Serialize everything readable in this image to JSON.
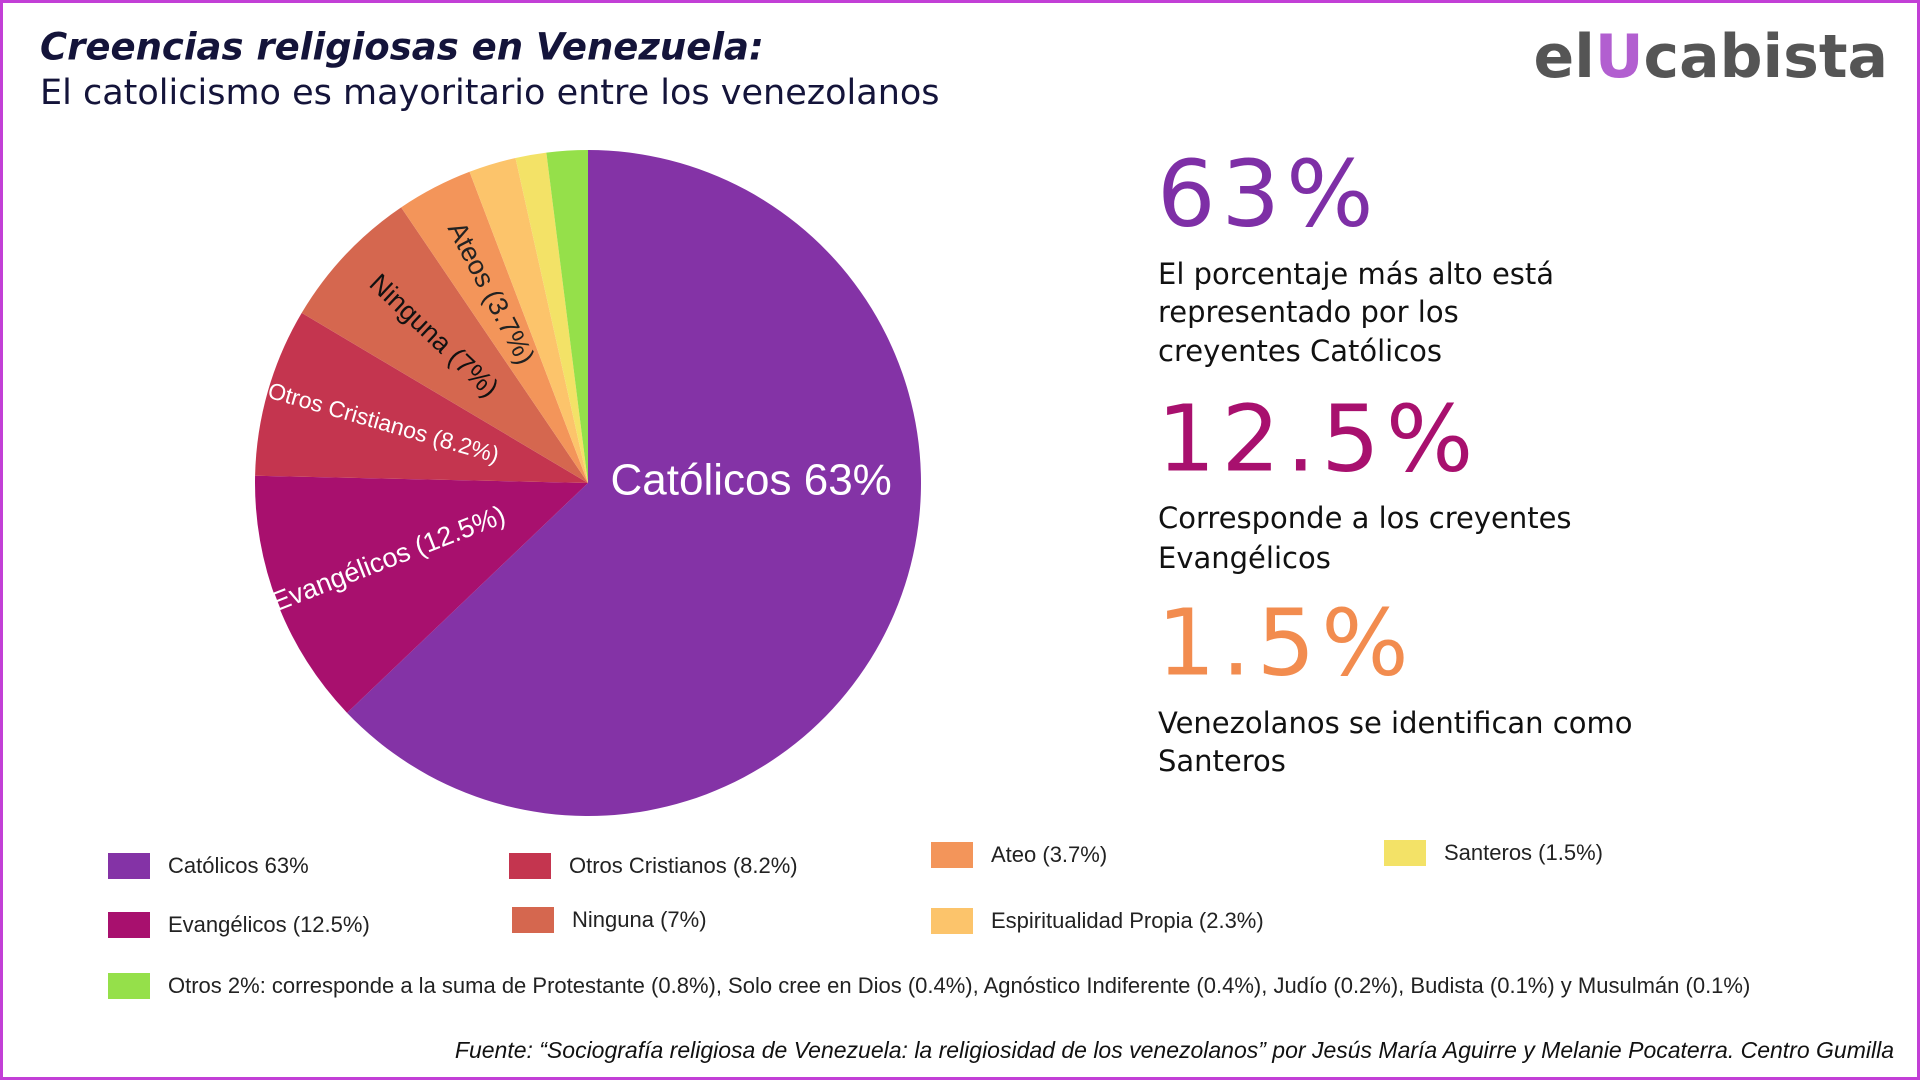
{
  "chart_data": {
    "type": "pie",
    "title": "Creencias religiosas en Venezuela:",
    "subtitle": "El catolicismo es mayoritario entre los venezolanos",
    "categories": [
      "Católicos 63%",
      "Evangélicos (12.5%)",
      "Otros Cristianos (8.2%)",
      "Ninguna (7%)",
      "Ateo (3.7%)",
      "Espiritualidad Propia (2.3%)",
      "Santeros (1.5%)",
      "Otros 2%: corresponde a la suma de Protestante (0.8%), Solo cree en Dios (0.4%), Agnóstico Indiferente (0.4%), Judío (0.2%), Budista (0.1%) y Musulmán (0.1%)"
    ],
    "values": [
      63,
      12.5,
      8.2,
      7,
      3.7,
      2.3,
      1.5,
      2
    ],
    "slice_labels": [
      "Católicos 63%",
      "Evangélicos (12.5%)",
      "Otros Cristianos (8.2%)",
      "Ninguna (7%)",
      "Ateos (3.7%)",
      null,
      null,
      null
    ],
    "colors": [
      "#8433a6",
      "#a8106e",
      "#c4354f",
      "#d5674f",
      "#f3955a",
      "#fcc46b",
      "#f3e267",
      "#95e04a"
    ],
    "logo": [
      "el",
      "U",
      "cabista"
    ],
    "highlights": [
      {
        "value": "63%",
        "color": "#7e2fa6",
        "lines": [
          "El porcentaje más alto está",
          "representado por los",
          "creyentes Católicos"
        ]
      },
      {
        "value": "12.5%",
        "color": "#a8106e",
        "lines": [
          "Corresponde a los creyentes",
          "Evangélicos"
        ]
      },
      {
        "value": "1.5%",
        "color": "#f28c4f",
        "lines": [
          "Venezolanos se identifican como",
          "Santeros"
        ]
      }
    ],
    "source": "Fuente: “Sociografía religiosa de Venezuela: la religiosidad de los venezolanos” por Jesús María Aguirre y Melanie Pocaterra. Centro Gumilla"
  }
}
